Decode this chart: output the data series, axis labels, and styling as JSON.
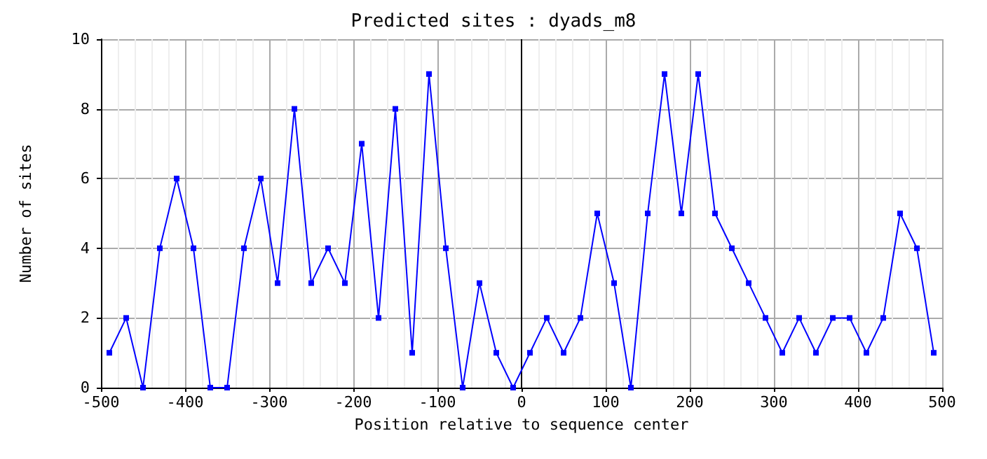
{
  "chart_data": {
    "type": "line",
    "title": "Predicted sites : dyads_m8",
    "xlabel": "Position relative to sequence center",
    "ylabel": "Number of sites",
    "x": [
      -490,
      -470,
      -450,
      -430,
      -410,
      -390,
      -370,
      -350,
      -330,
      -310,
      -290,
      -270,
      -250,
      -230,
      -210,
      -190,
      -170,
      -150,
      -130,
      -110,
      -90,
      -70,
      -50,
      -30,
      -10,
      10,
      30,
      50,
      70,
      90,
      110,
      130,
      150,
      170,
      190,
      210,
      230,
      250,
      270,
      290,
      310,
      330,
      350,
      370,
      390,
      410,
      430,
      450,
      470,
      490
    ],
    "series": [
      {
        "color": "#0000ff",
        "values": [
          1,
          2,
          0,
          4,
          6,
          4,
          0,
          0,
          4,
          6,
          3,
          8,
          3,
          4,
          3,
          7,
          2,
          8,
          1,
          9,
          4,
          0,
          3,
          1,
          0,
          1,
          2,
          1,
          2,
          5,
          3,
          0,
          5,
          9,
          5,
          9,
          5,
          4,
          3,
          2,
          1,
          2,
          1,
          2,
          2,
          1,
          2,
          5,
          4,
          1
        ]
      }
    ],
    "xlim": [
      -500,
      500
    ],
    "xticks": [
      -500,
      -400,
      -300,
      -200,
      -100,
      0,
      100,
      200,
      300,
      400,
      500
    ],
    "ylim": [
      0,
      10
    ],
    "yticks": [
      0,
      2,
      4,
      6,
      8,
      10
    ],
    "ref_lines": [
      {
        "axis": "x",
        "value": 0,
        "color": "#000000"
      }
    ],
    "grid": true,
    "marker": "square",
    "line_style": "solid"
  }
}
